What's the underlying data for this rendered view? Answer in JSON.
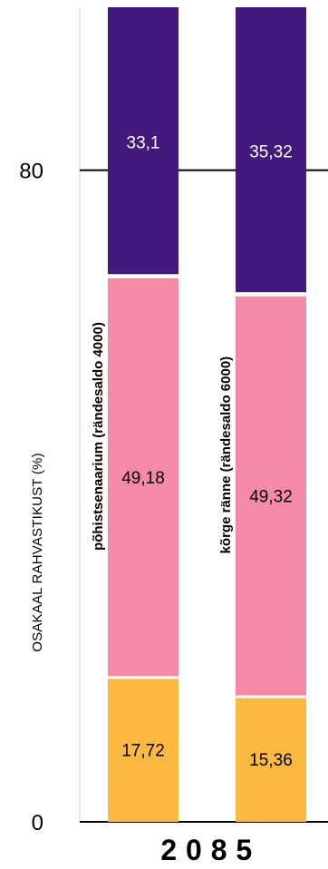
{
  "chart_data": {
    "type": "bar",
    "stacked": true,
    "ylabel": "OSAKAAL RAHVASTIKUST (%)",
    "yticks": [
      "0",
      "80"
    ],
    "ylim": [
      0,
      100
    ],
    "category": "2 0 8 5",
    "bars": [
      {
        "name": "põhistsenaarium (rändesaldo 4000)",
        "values": [
          17.72,
          49.18,
          33.1
        ],
        "labels": [
          "17,72",
          "49,18",
          "33,1"
        ]
      },
      {
        "name": "kõrge ränne (rändesaldo 6000)",
        "values": [
          15.36,
          49.32,
          35.32
        ],
        "labels": [
          "15,36",
          "49,32",
          "35,32"
        ]
      }
    ],
    "segment_colors": [
      "#fbb941",
      "#f48aa6",
      "#43197e"
    ],
    "label_colors": [
      "#000000",
      "#000000",
      "#ffffff"
    ],
    "grid": false
  }
}
